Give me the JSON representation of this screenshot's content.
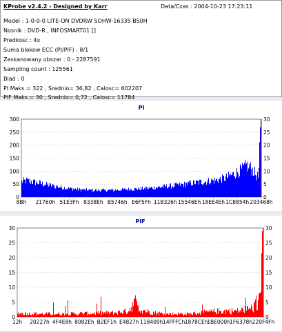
{
  "info": {
    "title": "KProbe v2.4.2 - Designed by Karr",
    "datetime": "Data/Czas : 2004-10-23 17:23:11",
    "lines": [
      "Model : 1-0-0-0 LITE-ON DVDRW SOHW-16335 BS0H",
      "Nosnik : DVD-R , INFOSMART01 []",
      "Predkosc : 4x",
      "Suma blokow ECC (PI/PIF) : 8/1",
      "Zeskanowany obszar : 0 - 2287591",
      "Sampling count : 125561",
      "Blad : 0",
      "PI Maks.= 322 , Srednio= 36,82 , Calosc= 602207",
      "PIF Maks.= 30 , Srednio= 0,72 , Calosc= 11784"
    ]
  },
  "colors": {
    "bars": "#0000ff",
    "pif_bars": "#ff0000",
    "right_axis_line": "#ff0000",
    "grid": "#b0b0b0",
    "title": "#0000aa"
  },
  "chart_data": [
    {
      "type": "bar",
      "title": "PI",
      "ylim": [
        0,
        300
      ],
      "y_ticks_left": [
        0,
        50,
        100,
        150,
        200,
        250,
        300
      ],
      "y_ticks_right": [
        0,
        5,
        10,
        15,
        20,
        25,
        30
      ],
      "x_tick_labels": [
        "8Bh",
        "21760h",
        "51E3Fh",
        "8338Eh",
        "B5746h",
        "E6F5Fh",
        "11B326h",
        "15546Eh",
        "18EE4Eh",
        "1C8854h",
        "203468h"
      ],
      "grid": true,
      "profile": [
        [
          0,
          60
        ],
        [
          2,
          63
        ],
        [
          5,
          58
        ],
        [
          8,
          52
        ],
        [
          12,
          45
        ],
        [
          16,
          38
        ],
        [
          20,
          33
        ],
        [
          25,
          28
        ],
        [
          30,
          26
        ],
        [
          35,
          26
        ],
        [
          40,
          27
        ],
        [
          45,
          30
        ],
        [
          50,
          32
        ],
        [
          55,
          36
        ],
        [
          60,
          40
        ],
        [
          65,
          45
        ],
        [
          70,
          52
        ],
        [
          75,
          58
        ],
        [
          80,
          63
        ],
        [
          85,
          72
        ],
        [
          88,
          85
        ],
        [
          90,
          95
        ],
        [
          92,
          105
        ],
        [
          93,
          112
        ],
        [
          94,
          120
        ],
        [
          95,
          118
        ],
        [
          96,
          108
        ],
        [
          97,
          100
        ],
        [
          98,
          85
        ],
        [
          99,
          75
        ],
        [
          100,
          300
        ]
      ]
    },
    {
      "type": "bar",
      "title": "PIF",
      "ylim": [
        0,
        30
      ],
      "y_ticks_left": [
        0,
        5,
        10,
        15,
        20,
        25,
        30
      ],
      "y_ticks_right": [
        0,
        5,
        10,
        15,
        20,
        25,
        30
      ],
      "x_tick_labels": [
        "12h",
        "20227h",
        "4F4E8h",
        "8082Eh",
        "B2EF1h",
        "E4827h",
        "118409h",
        "14FFFCh",
        "1878CEh",
        "1BE000h",
        "1F6378h",
        "220F4Fh"
      ],
      "grid": true,
      "profile": [
        [
          0,
          1.2
        ],
        [
          10,
          1.0
        ],
        [
          20,
          1.0
        ],
        [
          30,
          1.2
        ],
        [
          40,
          1.4
        ],
        [
          45,
          2.0
        ],
        [
          48,
          5.0
        ],
        [
          50,
          2.5
        ],
        [
          55,
          1.5
        ],
        [
          60,
          1.0
        ],
        [
          70,
          1.0
        ],
        [
          75,
          1.4
        ],
        [
          80,
          1.8
        ],
        [
          85,
          2.0
        ],
        [
          90,
          2.0
        ],
        [
          93,
          2.5
        ],
        [
          96,
          3.0
        ],
        [
          98,
          5.0
        ],
        [
          99,
          8.0
        ],
        [
          100,
          30
        ]
      ]
    }
  ]
}
